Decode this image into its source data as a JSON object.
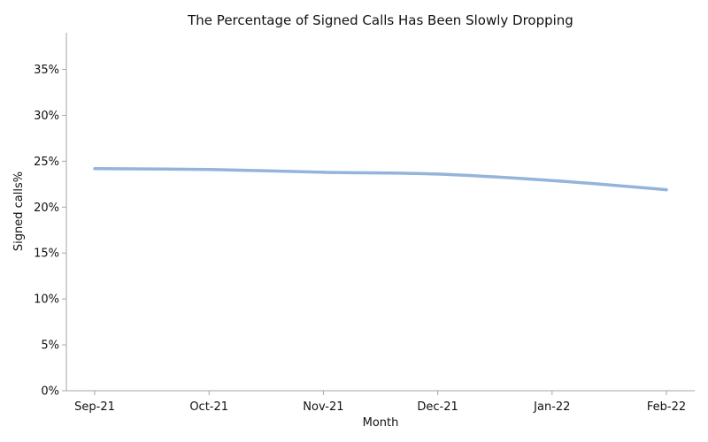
{
  "chart_data": {
    "type": "line",
    "title": "The Percentage of Signed Calls Has Been Slowly Dropping",
    "xlabel": "Month",
    "ylabel": "Signed calls%",
    "categories": [
      "Sep-21",
      "Oct-21",
      "Nov-21",
      "Dec-21",
      "Jan-22",
      "Feb-22"
    ],
    "series": [
      {
        "values": [
          24.2,
          24.1,
          23.8,
          23.6,
          22.9,
          21.9
        ],
        "color": "#94b4da"
      }
    ],
    "ylim": [
      0,
      39
    ],
    "yticks": [
      0,
      5,
      10,
      15,
      20,
      25,
      30,
      35
    ],
    "ytick_format": "{v}%",
    "grid": false,
    "spines": [
      "left",
      "bottom"
    ],
    "legend": "none"
  }
}
